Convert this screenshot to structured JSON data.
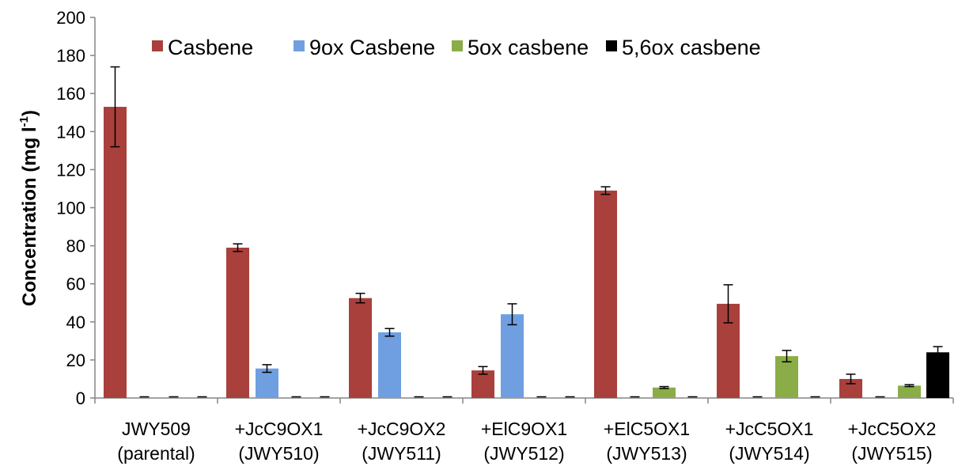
{
  "chart_data": {
    "type": "bar",
    "title": "",
    "ylabel": "Concentration (mg l⁻¹)",
    "ylabel_main": "Concentration (mg l",
    "ylabel_sup": "-1",
    "ylabel_close": ")",
    "xlabel": "",
    "ylim": [
      0,
      200
    ],
    "yticks": [
      0,
      20,
      40,
      60,
      80,
      100,
      120,
      140,
      160,
      180,
      200
    ],
    "grid": false,
    "legend_position": "top",
    "categories": [
      {
        "line1": "JWY509",
        "line2": "(parental)"
      },
      {
        "line1": "+JcC9OX1",
        "line2": "(JWY510)"
      },
      {
        "line1": "+JcC9OX2",
        "line2": "(JWY511)"
      },
      {
        "line1": "+ElC9OX1",
        "line2": "(JWY512)"
      },
      {
        "line1": "+ElC5OX1",
        "line2": "(JWY513)"
      },
      {
        "line1": "+JcC5OX1",
        "line2": "(JWY514)"
      },
      {
        "line1": "+JcC5OX2",
        "line2": "(JWY515)"
      }
    ],
    "series": [
      {
        "name": "Casbene",
        "color": "#A9403B",
        "values": [
          153,
          79,
          52.5,
          14.5,
          109,
          49.5,
          10
        ],
        "errors": [
          21,
          2,
          2.5,
          2,
          2,
          10,
          2.5
        ]
      },
      {
        "name": "9ox Casbene",
        "color": "#6F9FE0",
        "values": [
          0,
          15.5,
          34.5,
          44,
          0,
          0,
          0
        ],
        "errors": [
          0,
          2,
          2,
          5.5,
          0,
          0,
          0
        ]
      },
      {
        "name": "5ox casbene",
        "color": "#8AAD48",
        "values": [
          0,
          0,
          0,
          0,
          5.5,
          22,
          6.5
        ],
        "errors": [
          0,
          0,
          0,
          0,
          0.5,
          3,
          0.5
        ]
      },
      {
        "name": "5,6ox casbene",
        "color": "#000000",
        "values": [
          0,
          0,
          0,
          0,
          0,
          0,
          24
        ],
        "errors": [
          0,
          0,
          0,
          0,
          0,
          0,
          3
        ]
      }
    ]
  }
}
